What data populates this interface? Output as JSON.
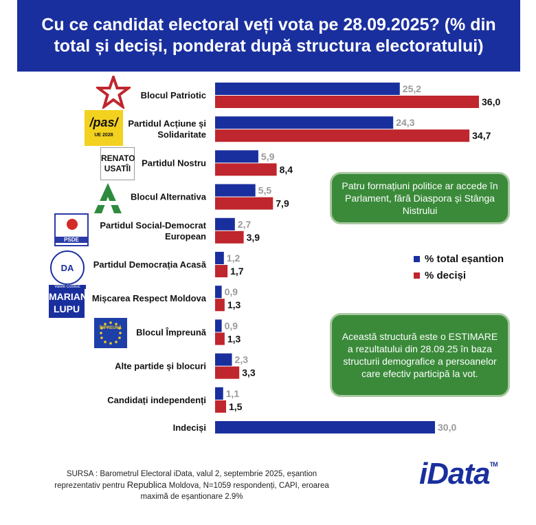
{
  "header": {
    "title": "Cu ce candidat electoral veți vota pe 28.09.2025? (% din total și deciși, ponderat după structura electoratului)"
  },
  "legend": {
    "total": "% total eșantion",
    "decisi": "% deciși"
  },
  "notes": {
    "note1": "Patru formațiuni politice ar accede în Parlament, fără Diaspora și Stânga Nistrului",
    "note2": "Această structură este o ESTIMARE a rezultatului din 28.09.25 în baza structurii demografice a persoanelor care efectiv participă la vot."
  },
  "source": {
    "line1": "SURSA : Barometrul Electoral iData, valul 2, septembrie 2025, eșantion",
    "line2a": "reprezentativ pentru ",
    "line2b": "Republica",
    "line2c": " Moldova, N=1059 respondenți, CAPI, eroarea",
    "line3": "maximă de eșantionare 2.9%"
  },
  "logo": {
    "text_main": "iData",
    "tm": "TM"
  },
  "icons": {
    "pas_main": "/pas/",
    "pas_sub": "UE 2028",
    "renato_line1": "RENATO",
    "renato_line2": "USATÎI",
    "psde": "PSDE",
    "da": "DA",
    "da_name": "Vasile Costiuc",
    "lupu_line1": "MARIAN",
    "lupu_line2": "LUPU",
    "eu": "ÎMPREUNĂ"
  },
  "colors": {
    "total": "#1a2f9e",
    "decisi": "#c0262d",
    "header": "#1a2f9e",
    "note": "#3a8a3a"
  },
  "chart_data": {
    "type": "bar",
    "orientation": "horizontal",
    "categories": [
      "Blocul Patriotic",
      "Partidul Acțiune și Solidaritate",
      "Partidul Nostru",
      "Blocul Alternativa",
      "Partidul Social-Democrat European",
      "Partidul Democrația Acasă",
      "Mișcarea Respect Moldova",
      "Blocul Împreună",
      "Alte partide și blocuri",
      "Candidați independenți",
      "Indeciși"
    ],
    "category_label_lines": [
      [
        "Blocul Patriotic"
      ],
      [
        "Partidul Acțiune și",
        "Solidaritate"
      ],
      [
        "Partidul Nostru"
      ],
      [
        "Blocul Alternativa"
      ],
      [
        "Partidul Social-Democrat",
        "European"
      ],
      [
        "Partidul Democrația Acasă"
      ],
      [
        "Mișcarea Respect Moldova"
      ],
      [
        "Blocul Împreună"
      ],
      [
        "Alte partide și blocuri"
      ],
      [
        "Candidați independenți"
      ],
      [
        "Indeciși"
      ]
    ],
    "series": [
      {
        "name": "% total eșantion",
        "values": [
          25.2,
          24.3,
          5.9,
          5.5,
          2.7,
          1.2,
          0.9,
          0.9,
          2.3,
          1.1,
          30.0
        ],
        "labels": [
          "25,2",
          "24,3",
          "5,9",
          "5,5",
          "2,7",
          "1,2",
          "0,9",
          "0,9",
          "2,3",
          "1,1",
          "30,0"
        ]
      },
      {
        "name": "% deciși",
        "values": [
          36.0,
          34.7,
          8.4,
          7.9,
          3.9,
          1.7,
          1.3,
          1.3,
          3.3,
          1.5,
          null
        ],
        "labels": [
          "36,0",
          "34,7",
          "8,4",
          "7,9",
          "3,9",
          "1,7",
          "1,3",
          "1,3",
          "3,3",
          "1,5",
          ""
        ]
      }
    ],
    "xlim": [
      0,
      36.0
    ],
    "grid": false,
    "legend_position": "right"
  }
}
